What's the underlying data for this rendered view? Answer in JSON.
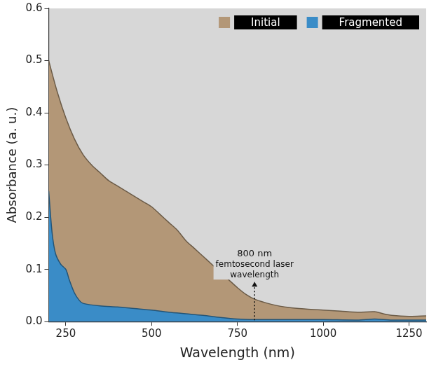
{
  "chart_data": {
    "type": "area",
    "x_label": "Wavelength (nm)",
    "y_label": "Absorbance (a. u.)",
    "xlim": [
      200,
      1300
    ],
    "xticks": [
      250,
      500,
      750,
      1000,
      1250
    ],
    "ylim": [
      0,
      0.6
    ],
    "yticks": [
      {
        "value": 0,
        "label": "0.0"
      },
      0.1,
      0.2,
      0.3,
      0.4,
      0.5,
      0.6
    ],
    "grid": false,
    "legend": "top-right",
    "annotation": {
      "text": "800 nm femtosecond laser wavelength",
      "x": 800
    },
    "series": [
      {
        "name": "Initial",
        "color": "#b39777",
        "x": [
          200,
          225,
          250,
          275,
          300,
          325,
          350,
          375,
          400,
          425,
          450,
          475,
          500,
          525,
          550,
          575,
          600,
          625,
          650,
          675,
          700,
          725,
          750,
          775,
          800,
          850,
          900,
          950,
          1000,
          1050,
          1100,
          1150,
          1175,
          1200,
          1250,
          1300
        ],
        "values": [
          0.5,
          0.44,
          0.39,
          0.35,
          0.32,
          0.3,
          0.285,
          0.27,
          0.26,
          0.25,
          0.24,
          0.23,
          0.22,
          0.205,
          0.19,
          0.175,
          0.155,
          0.14,
          0.125,
          0.11,
          0.095,
          0.08,
          0.065,
          0.052,
          0.043,
          0.033,
          0.027,
          0.024,
          0.022,
          0.02,
          0.018,
          0.019,
          0.015,
          0.012,
          0.01,
          0.011
        ]
      },
      {
        "name": "Fragmented",
        "color": "#3a8cc7",
        "x": [
          200,
          210,
          220,
          235,
          250,
          260,
          275,
          290,
          300,
          350,
          400,
          450,
          500,
          550,
          600,
          650,
          700,
          750,
          800,
          900,
          1000,
          1100,
          1150,
          1200,
          1300
        ],
        "values": [
          0.25,
          0.17,
          0.13,
          0.11,
          0.1,
          0.08,
          0.055,
          0.04,
          0.035,
          0.03,
          0.028,
          0.025,
          0.022,
          0.018,
          0.015,
          0.012,
          0.008,
          0.005,
          0.004,
          0.004,
          0.004,
          0.003,
          0.005,
          0.003,
          0.003
        ]
      }
    ]
  }
}
